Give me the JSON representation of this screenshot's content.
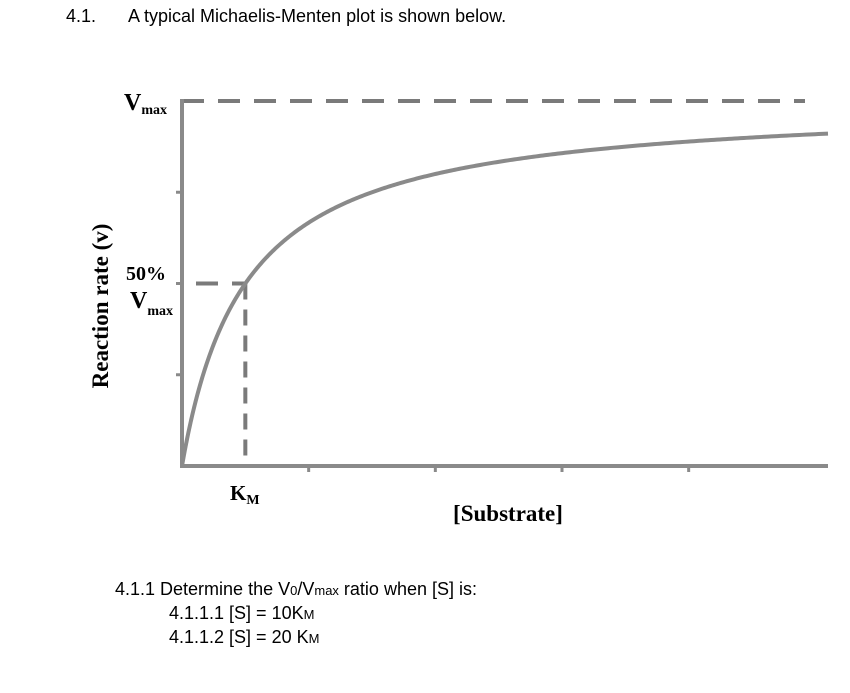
{
  "question": {
    "number": "4.1.",
    "text": "A typical Michaelis-Menten plot is shown below."
  },
  "chart_data": {
    "type": "line",
    "title": "",
    "xlabel": "[Substrate]",
    "ylabel": "Reaction rate (v)",
    "vmax_label": {
      "main": "V",
      "sub": "max"
    },
    "half_vmax_label": {
      "pct": "50%",
      "main": "V",
      "sub": "max"
    },
    "km_label": {
      "main": "K",
      "sub": "M"
    },
    "vmax": 1.0,
    "km": 1.0,
    "xlim": [
      0,
      10.2
    ],
    "ylim": [
      0,
      1.0
    ],
    "series": [
      {
        "equation": "v = Vmax*S/(Km+S)",
        "x": [
          0,
          0.25,
          0.5,
          1,
          2,
          3,
          4,
          6,
          8,
          10.2
        ],
        "y": [
          0,
          0.2,
          0.333,
          0.5,
          0.667,
          0.75,
          0.8,
          0.857,
          0.889,
          0.911
        ]
      }
    ],
    "reference_lines": [
      "Vmax (dashed horizontal)",
      "0.5 Vmax (dashed)",
      "Km (dashed vertical)"
    ],
    "grid": false
  },
  "subquestion": {
    "lead": "4.1.1 Determine the V",
    "v_sub": "0",
    "slash": "/V",
    "max_sub": "max",
    "tail": " ratio when [S] is:",
    "items": [
      {
        "text": "4.1.1.1 [S] = 10K",
        "sub": "M"
      },
      {
        "text": "4.1.1.2 [S] = 20 K",
        "sub": "M"
      }
    ]
  }
}
